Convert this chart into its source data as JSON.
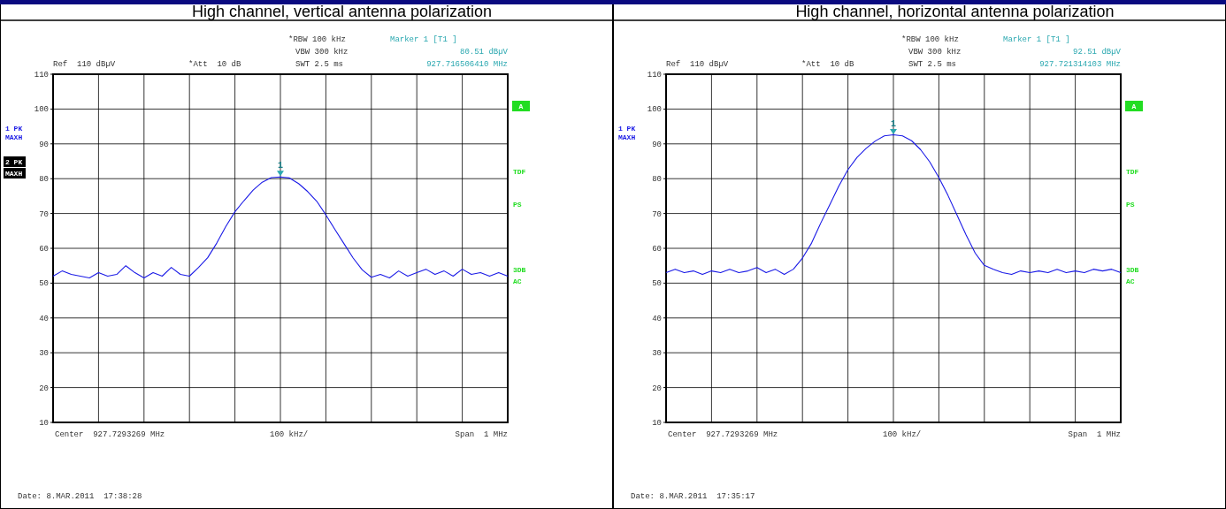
{
  "chart_data": [
    {
      "type": "line",
      "title": "High channel, vertical antenna polarization",
      "ylim": [
        10,
        110
      ],
      "grid": true,
      "categories": [
        null,
        null,
        null,
        null,
        null,
        null,
        null,
        null,
        null,
        null,
        null,
        null,
        null,
        null,
        null,
        null,
        null,
        null,
        null,
        null,
        null,
        null,
        null,
        null,
        null,
        null,
        null,
        null,
        null,
        null,
        null,
        null,
        null,
        null,
        null,
        null,
        null,
        null,
        null,
        null,
        null,
        null,
        null,
        null,
        null,
        null,
        null,
        null,
        null,
        null,
        null
      ],
      "yticks": [
        10,
        20,
        30,
        40,
        50,
        60,
        70,
        80,
        90,
        100,
        110
      ],
      "series": [
        {
          "color": "#1a1ae6",
          "values": [
            52,
            53.5,
            52.5,
            52,
            51.5,
            53,
            52,
            52.5,
            55,
            53,
            51.5,
            53,
            52,
            54.5,
            52.5,
            52,
            54.5,
            57.3,
            61.5,
            66.3,
            70.5,
            73.7,
            76.7,
            79,
            80.3,
            80.5,
            80.2,
            78.6,
            76.3,
            73.5,
            69.6,
            65.4,
            61.3,
            57.2,
            53.8,
            51.7,
            52.5,
            51.5,
            53.5,
            52,
            53,
            54,
            52.5,
            53.5,
            52,
            54,
            52.5,
            53,
            52,
            53,
            52
          ]
        }
      ],
      "annotations": [
        "*RBW 100 kHz",
        "VBW 300 kHz",
        "SWT 2.5 ms",
        "Marker 1 [T1 ]",
        "80.51 dBµV",
        "927.716506410 MHz",
        "Ref  110 dBµV",
        "*Att  10 dB",
        "1 PK",
        "MAXH",
        "A",
        "TDF",
        "PS",
        "3DB",
        "AC",
        "Center  927.7293269 MHz",
        "100 kHz/",
        "Span  1 MHz",
        "Date: 8.MAR.2011  17:38:28",
        {
          "text": "1",
          "y": 80.51
        },
        "2 PK",
        "MAXH"
      ]
    },
    {
      "type": "line",
      "title": "High channel, horizontal antenna polarization",
      "ylim": [
        10,
        110
      ],
      "grid": true,
      "categories": [
        null,
        null,
        null,
        null,
        null,
        null,
        null,
        null,
        null,
        null,
        null,
        null,
        null,
        null,
        null,
        null,
        null,
        null,
        null,
        null,
        null,
        null,
        null,
        null,
        null,
        null,
        null,
        null,
        null,
        null,
        null,
        null,
        null,
        null,
        null,
        null,
        null,
        null,
        null,
        null,
        null,
        null,
        null,
        null,
        null,
        null,
        null,
        null,
        null,
        null,
        null
      ],
      "yticks": [
        10,
        20,
        30,
        40,
        50,
        60,
        70,
        80,
        90,
        100,
        110
      ],
      "series": [
        {
          "color": "#1a1ae6",
          "values": [
            53,
            54,
            53,
            53.5,
            52.5,
            53.5,
            53,
            54,
            53,
            53.5,
            54.5,
            53,
            54,
            52.5,
            54,
            57.2,
            61.5,
            67.2,
            72.5,
            77.9,
            82.6,
            86.1,
            88.7,
            90.8,
            92.3,
            92.6,
            92.3,
            90.9,
            88.3,
            84.8,
            80.3,
            75.2,
            69.5,
            63.8,
            58.6,
            55.1,
            54,
            53,
            52.5,
            53.5,
            53,
            53.5,
            53,
            54,
            53,
            53.5,
            53,
            54,
            53.5,
            54,
            53
          ]
        }
      ],
      "annotations": [
        "*RBW 100 kHz",
        "VBW 300 kHz",
        "SWT 2.5 ms",
        "Marker 1 [T1 ]",
        "92.51 dBµV",
        "927.721314103 MHz",
        "Ref  110 dBµV",
        "*Att  10 dB",
        "1 PK",
        "MAXH",
        "A",
        "TDF",
        "PS",
        "3DB",
        "AC",
        "Center  927.7293269 MHz",
        "100 kHz/",
        "Span  1 MHz",
        "Date: 8.MAR.2011  17:35:17",
        {
          "text": "1",
          "y": 92.51
        }
      ]
    }
  ]
}
